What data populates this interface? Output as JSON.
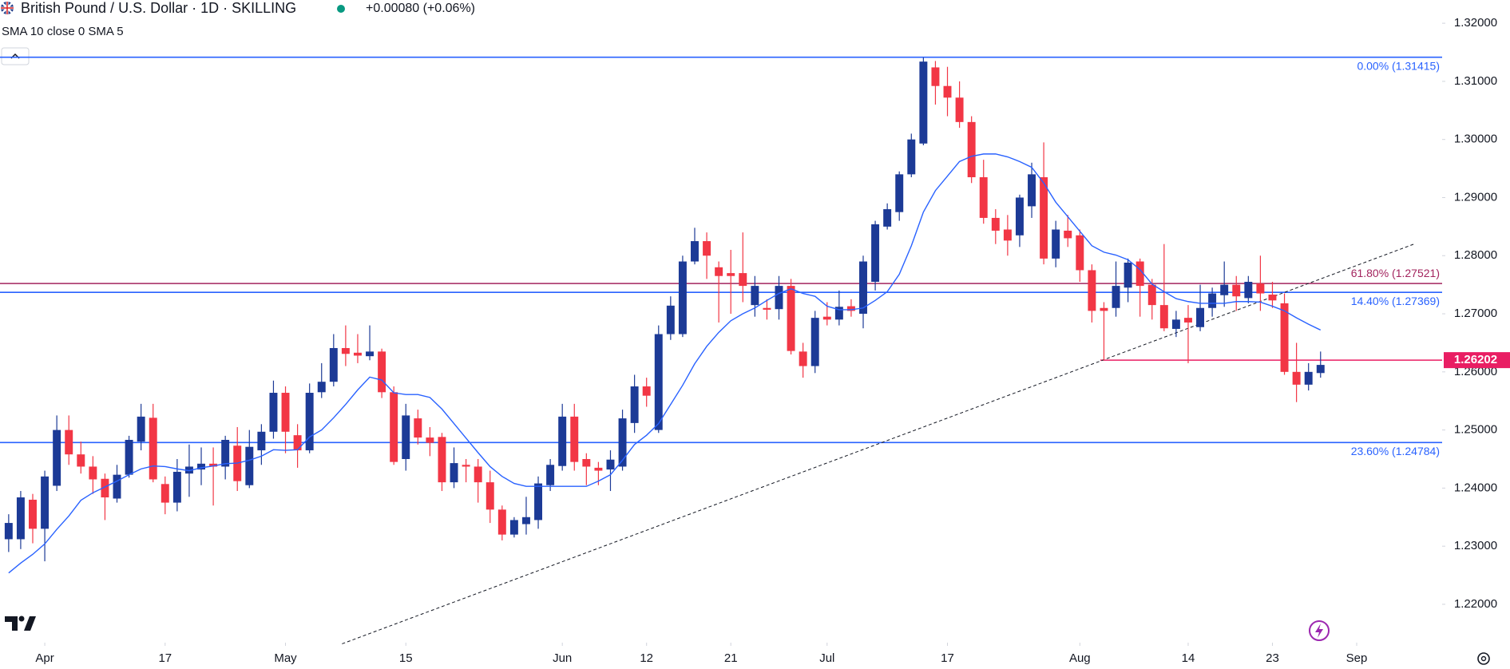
{
  "chart_data": {
    "type": "candlestick",
    "title": "British Pound / U.S. Dollar · 1D · SKILLING",
    "change": "+0.00080 (+0.06%)",
    "indicator": "SMA 10 close 0 SMA 5",
    "up_color": "#1c3a96",
    "down_color": "#f23645",
    "open": [
      1.2312,
      1.2312,
      1.238,
      1.233,
      1.2404,
      1.25,
      1.2458,
      1.2437,
      1.2416,
      1.2382,
      1.2423,
      1.248,
      1.2521,
      1.2407,
      1.2375,
      1.2425,
      1.2432,
      1.2442,
      1.2437,
      1.2473,
      1.2405,
      1.2465,
      1.2497,
      1.2564,
      1.2491,
      1.2465,
      1.2565,
      1.2583,
      1.2641,
      1.2633,
      1.2627,
      1.2635,
      1.2565,
      1.245,
      1.252,
      1.2487,
      1.2488,
      1.241,
      1.244,
      1.2437,
      1.241,
      1.2363,
      1.232,
      1.2338,
      1.2345,
      1.2405,
      1.2438,
      1.2523,
      1.245,
      1.2435,
      1.2432,
      1.2437,
      1.2512,
      1.2575,
      1.25,
      1.2665,
      1.2665,
      1.279,
      1.2825,
      1.278,
      1.277,
      1.277,
      1.2715,
      1.271,
      1.2708,
      1.2748,
      1.2635,
      1.261,
      1.2695,
      1.269,
      1.2713,
      1.27,
      1.2755,
      1.285,
      1.2875,
      1.294,
      1.2993,
      1.3124,
      1.3092,
      1.3072,
      1.303,
      1.2935,
      1.2865,
      1.2845,
      1.2835,
      1.2885,
      1.2935,
      1.2795,
      1.2843,
      1.2835,
      1.2775,
      1.271,
      1.271,
      1.2745,
      1.279,
      1.275,
      1.2715,
      1.2674,
      1.2693,
      1.2677,
      1.271,
      1.2732,
      1.275,
      1.2727,
      1.2752,
      1.2733,
      1.2718,
      1.26,
      1.2578,
      1.2598
    ],
    "high": [
      1.2355,
      1.2395,
      1.239,
      1.243,
      1.2525,
      1.2525,
      1.248,
      1.2455,
      1.2425,
      1.244,
      1.249,
      1.2545,
      1.2545,
      1.242,
      1.245,
      1.2475,
      1.247,
      1.247,
      1.249,
      1.2505,
      1.25,
      1.251,
      1.2585,
      1.2575,
      1.251,
      1.258,
      1.2615,
      1.2665,
      1.268,
      1.2665,
      1.268,
      1.264,
      1.2575,
      1.2545,
      1.2535,
      1.2505,
      1.2495,
      1.247,
      1.245,
      1.245,
      1.243,
      1.237,
      1.235,
      1.2385,
      1.242,
      1.245,
      1.2545,
      1.2545,
      1.246,
      1.2445,
      1.2465,
      1.2535,
      1.2595,
      1.259,
      1.268,
      1.273,
      1.28,
      1.2848,
      1.284,
      1.279,
      1.281,
      1.284,
      1.2765,
      1.2725,
      1.2765,
      1.276,
      1.265,
      1.2705,
      1.272,
      1.274,
      1.2725,
      1.28,
      1.286,
      1.289,
      1.2945,
      1.301,
      1.3141,
      1.3135,
      1.3125,
      1.31,
      1.304,
      1.2965,
      1.288,
      1.287,
      1.2905,
      1.296,
      1.2995,
      1.286,
      1.287,
      1.2845,
      1.2785,
      1.272,
      1.279,
      1.2795,
      1.2795,
      1.276,
      1.282,
      1.2705,
      1.2715,
      1.275,
      1.2745,
      1.279,
      1.2765,
      1.2765,
      1.28,
      1.2755,
      1.2735,
      1.265,
      1.2615,
      1.2635
    ],
    "low": [
      1.229,
      1.2295,
      1.2305,
      1.2274,
      1.2395,
      1.244,
      1.2425,
      1.239,
      1.2345,
      1.2375,
      1.2418,
      1.2465,
      1.241,
      1.2355,
      1.236,
      1.2385,
      1.2405,
      1.237,
      1.2415,
      1.2395,
      1.24,
      1.244,
      1.2485,
      1.246,
      1.2435,
      1.246,
      1.2555,
      1.2575,
      1.261,
      1.2615,
      1.262,
      1.2555,
      1.244,
      1.243,
      1.2475,
      1.2455,
      1.2395,
      1.24,
      1.241,
      1.2375,
      1.234,
      1.231,
      1.2315,
      1.232,
      1.233,
      1.2395,
      1.243,
      1.243,
      1.2405,
      1.2405,
      1.2395,
      1.243,
      1.2495,
      1.254,
      1.2495,
      1.2655,
      1.266,
      1.2785,
      1.276,
      1.2685,
      1.27,
      1.272,
      1.2695,
      1.269,
      1.269,
      1.263,
      1.259,
      1.2598,
      1.268,
      1.268,
      1.2695,
      1.2675,
      1.274,
      1.2845,
      1.286,
      1.2935,
      1.299,
      1.306,
      1.304,
      1.302,
      1.2925,
      1.2855,
      1.282,
      1.28,
      1.2815,
      1.2865,
      1.2785,
      1.278,
      1.2815,
      1.2755,
      1.2685,
      1.262,
      1.2695,
      1.272,
      1.2695,
      1.269,
      1.267,
      1.266,
      1.2615,
      1.267,
      1.2695,
      1.2712,
      1.2705,
      1.2718,
      1.2705,
      1.271,
      1.2595,
      1.2548,
      1.2568,
      1.259
    ],
    "close": [
      1.234,
      1.2384,
      1.233,
      1.242,
      1.25,
      1.2458,
      1.2437,
      1.2415,
      1.2384,
      1.2423,
      1.2483,
      1.2523,
      1.2415,
      1.2375,
      1.2428,
      1.2437,
      1.2442,
      1.2437,
      1.2483,
      1.2412,
      1.2471,
      1.2497,
      1.2564,
      1.2497,
      1.2465,
      1.2564,
      1.2583,
      1.2641,
      1.2631,
      1.2628,
      1.2635,
      1.2565,
      1.2445,
      1.2525,
      1.2487,
      1.2478,
      1.241,
      1.2443,
      1.2437,
      1.241,
      1.2363,
      1.232,
      1.2345,
      1.235,
      1.2408,
      1.244,
      1.2523,
      1.2445,
      1.2437,
      1.243,
      1.2449,
      1.252,
      1.2575,
      1.2559,
      1.2665,
      1.2714,
      1.279,
      1.2825,
      1.28,
      1.2765,
      1.2765,
      1.2748,
      1.2748,
      1.2707,
      1.2748,
      1.2636,
      1.261,
      1.2693,
      1.269,
      1.2712,
      1.2705,
      1.279,
      1.2854,
      1.288,
      1.294,
      1.3,
      1.3134,
      1.3092,
      1.3072,
      1.303,
      1.2935,
      1.2865,
      1.2843,
      1.2826,
      1.29,
      1.294,
      1.2795,
      1.2845,
      1.283,
      1.2775,
      1.2705,
      1.2705,
      1.2748,
      1.2788,
      1.2748,
      1.2715,
      1.2675,
      1.269,
      1.2685,
      1.271,
      1.2735,
      1.275,
      1.273,
      1.2755,
      1.2735,
      1.2723,
      1.26,
      1.2578,
      1.26,
      1.2612
    ],
    "sma": {
      "color": "#2962ff",
      "values": [
        1.2254,
        1.2271,
        1.2286,
        1.2304,
        1.2329,
        1.2352,
        1.2379,
        1.2392,
        1.2402,
        1.2412,
        1.2423,
        1.2433,
        1.2438,
        1.2437,
        1.2433,
        1.243,
        1.2435,
        1.2438,
        1.2442,
        1.2443,
        1.2448,
        1.2455,
        1.2466,
        1.2465,
        1.2466,
        1.2488,
        1.25,
        1.2521,
        1.2544,
        1.2569,
        1.2591,
        1.2586,
        1.2564,
        1.2561,
        1.2561,
        1.2556,
        1.2536,
        1.2511,
        1.2486,
        1.2461,
        1.2437,
        1.242,
        1.2408,
        1.2403,
        1.2403,
        1.2403,
        1.2403,
        1.2403,
        1.2403,
        1.2412,
        1.2423,
        1.2448,
        1.2475,
        1.2491,
        1.2511,
        1.2544,
        1.2577,
        1.2614,
        1.2644,
        1.2668,
        1.2688,
        1.27,
        1.271,
        1.2723,
        1.2735,
        1.2743,
        1.2735,
        1.273,
        1.2713,
        1.2707,
        1.2707,
        1.271,
        1.2723,
        1.2738,
        1.2768,
        1.2817,
        1.2875,
        1.2912,
        1.2937,
        1.2962,
        1.2971,
        1.2975,
        1.2975,
        1.297,
        1.2962,
        1.2952,
        1.2925,
        1.2892,
        1.2867,
        1.2842,
        1.2817,
        1.2806,
        1.2801,
        1.2793,
        1.2776,
        1.2751,
        1.2738,
        1.2726,
        1.2721,
        1.2718,
        1.2718,
        1.2718,
        1.2721,
        1.2721,
        1.272,
        1.2713,
        1.2705,
        1.2693,
        1.2682,
        1.2672
      ]
    },
    "xlim": [
      -0.72,
      119.1
    ],
    "xticks": [
      {
        "value": 3,
        "label": "Apr"
      },
      {
        "value": 13,
        "label": "17"
      },
      {
        "value": 23,
        "label": "May"
      },
      {
        "value": 33,
        "label": "15"
      },
      {
        "value": 46,
        "label": "Jun"
      },
      {
        "value": 53,
        "label": "12"
      },
      {
        "value": 60,
        "label": "21"
      },
      {
        "value": 68,
        "label": "Jul"
      },
      {
        "value": 78,
        "label": "17"
      },
      {
        "value": 89,
        "label": "Aug"
      },
      {
        "value": 98,
        "label": "14"
      },
      {
        "value": 105,
        "label": "23"
      },
      {
        "value": 112,
        "label": "Sep"
      }
    ],
    "ylim": [
      1.2134,
      1.324
    ],
    "yticks": [
      {
        "value": 1.32,
        "label": "1.32000"
      },
      {
        "value": 1.31,
        "label": "1.31000"
      },
      {
        "value": 1.3,
        "label": "1.30000"
      },
      {
        "value": 1.29,
        "label": "1.29000"
      },
      {
        "value": 1.28,
        "label": "1.28000"
      },
      {
        "value": 1.27,
        "label": "1.27000"
      },
      {
        "value": 1.26,
        "label": "1.26000"
      },
      {
        "value": 1.25,
        "label": "1.25000"
      },
      {
        "value": 1.24,
        "label": "1.24000"
      },
      {
        "value": 1.23,
        "label": "1.23000"
      },
      {
        "value": 1.22,
        "label": "1.22000"
      }
    ],
    "levels": [
      {
        "value": 1.31415,
        "label": "0.00% (1.31415)",
        "color": "#2962ff",
        "label_position": "below"
      },
      {
        "value": 1.27521,
        "label": "61.80% (1.27521)",
        "color": "#a3245e",
        "label_position": "above"
      },
      {
        "value": 1.27369,
        "label": "14.40% (1.27369)",
        "color": "#2962ff",
        "label_position": "below"
      },
      {
        "value": 1.24784,
        "label": "23.60% (1.24784)",
        "color": "#2962ff",
        "label_position": "below"
      }
    ],
    "support": {
      "value": 1.26202,
      "color": "#e91e63",
      "start": 90.7
    },
    "trendline": {
      "x": [
        27.7,
        116.9
      ],
      "y": [
        1.2132,
        1.2821
      ]
    }
  }
}
